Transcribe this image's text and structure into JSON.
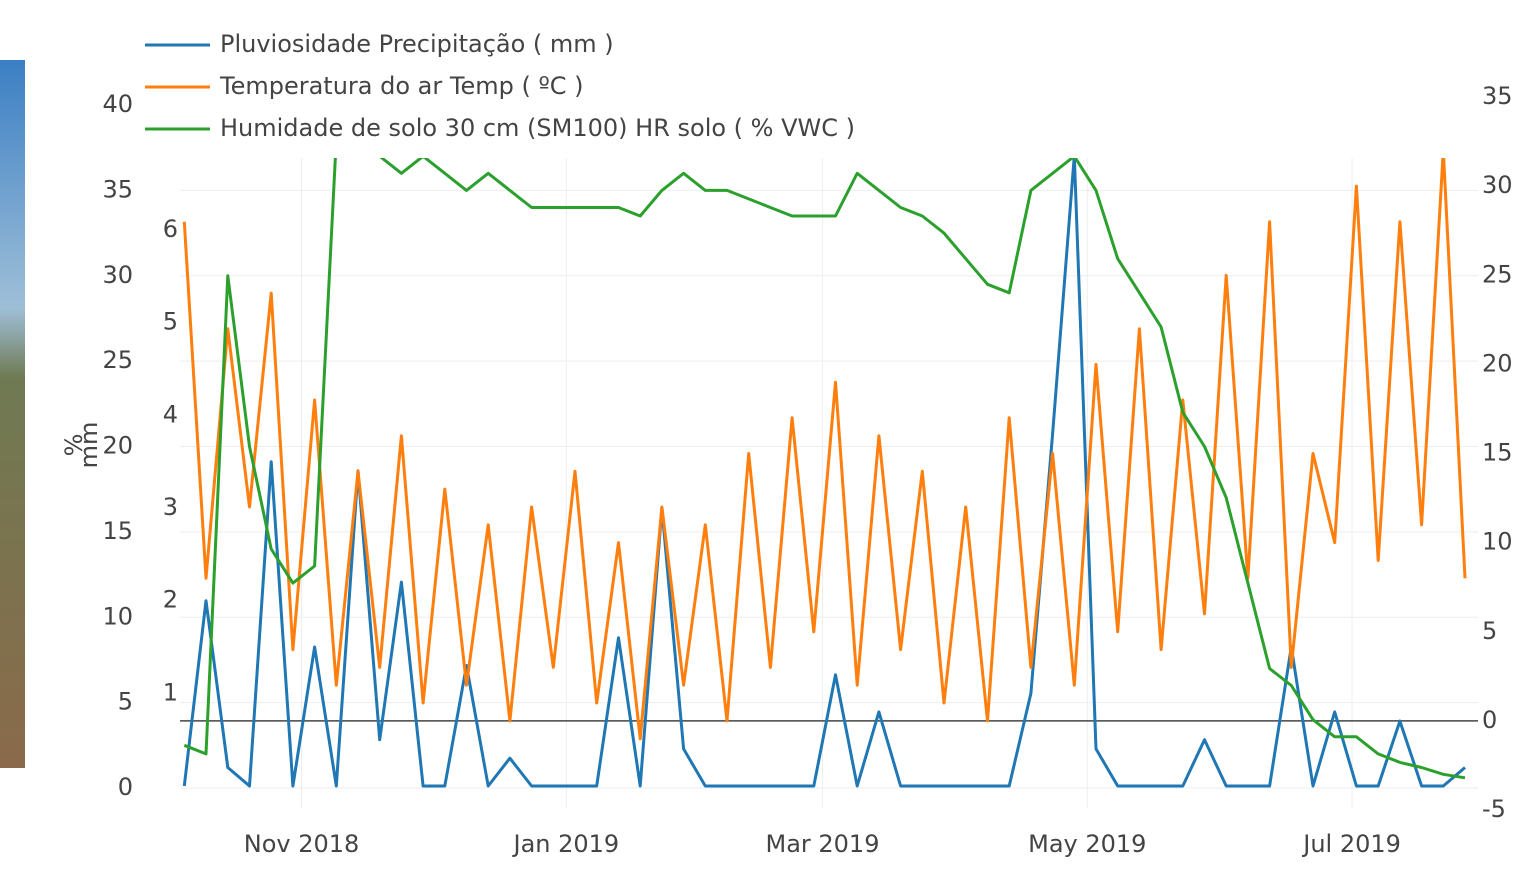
{
  "chart_data": {
    "type": "line",
    "ylabel": "mm",
    "y3label": "%",
    "x": [
      "2018-10-05",
      "2018-10-10",
      "2018-10-15",
      "2018-10-20",
      "2018-10-25",
      "2018-10-30",
      "2018-11-04",
      "2018-11-09",
      "2018-11-14",
      "2018-11-19",
      "2018-11-24",
      "2018-11-29",
      "2018-12-04",
      "2018-12-09",
      "2018-12-14",
      "2018-12-19",
      "2018-12-24",
      "2018-12-29",
      "2019-01-03",
      "2019-01-08",
      "2019-01-13",
      "2019-01-18",
      "2019-01-23",
      "2019-01-28",
      "2019-02-02",
      "2019-02-07",
      "2019-02-12",
      "2019-02-17",
      "2019-02-22",
      "2019-02-27",
      "2019-03-04",
      "2019-03-09",
      "2019-03-14",
      "2019-03-19",
      "2019-03-24",
      "2019-03-29",
      "2019-04-03",
      "2019-04-08",
      "2019-04-13",
      "2019-04-18",
      "2019-04-23",
      "2019-04-28",
      "2019-05-03",
      "2019-05-08",
      "2019-05-13",
      "2019-05-18",
      "2019-05-23",
      "2019-05-28",
      "2019-06-02",
      "2019-06-07",
      "2019-06-12",
      "2019-06-17",
      "2019-06-22",
      "2019-06-27",
      "2019-07-02",
      "2019-07-07",
      "2019-07-12",
      "2019-07-17",
      "2019-07-22",
      "2019-07-27"
    ],
    "xlim": [
      "2018-10-04",
      "2019-07-30"
    ],
    "xticks": [
      {
        "value": "2018-11-01",
        "label": "Nov 2018"
      },
      {
        "value": "2019-01-01",
        "label": "Jan 2019"
      },
      {
        "value": "2019-03-01",
        "label": "Mar 2019"
      },
      {
        "value": "2019-05-01",
        "label": "May 2019"
      },
      {
        "value": "2019-07-01",
        "label": "Jul 2019"
      }
    ],
    "ylim": [
      0,
      6
    ],
    "yticks": [
      1,
      2,
      3,
      4,
      5,
      6
    ],
    "y2lim": [
      -5,
      35
    ],
    "y2ticks": [
      -5,
      0,
      5,
      10,
      15,
      20,
      25,
      30,
      35
    ],
    "y3lim": [
      0,
      40
    ],
    "y3ticks": [
      0,
      5,
      10,
      15,
      20,
      25,
      30,
      35,
      40
    ],
    "grid": true,
    "series": [
      {
        "name": "Pluviosidade Precipitação ( mm )",
        "color": "#1f77b4",
        "axis": "y",
        "values": [
          0,
          2,
          0.2,
          0,
          3.5,
          0,
          1.5,
          0,
          3.4,
          0.5,
          2.2,
          0,
          0,
          1.3,
          0,
          0.3,
          0,
          0,
          0,
          0,
          1.6,
          0,
          3.0,
          0.4,
          0,
          0,
          0,
          0,
          0,
          0,
          1.2,
          0,
          0.8,
          0,
          0,
          0,
          0,
          0,
          0,
          1.0,
          3.8,
          6.8,
          0.4,
          0,
          0,
          0,
          0,
          0.5,
          0,
          0,
          0,
          1.5,
          0,
          0.8,
          0,
          0,
          0.7,
          0,
          0,
          0.2
        ]
      },
      {
        "name": "Temperatura do ar Temp ( ºC )",
        "color": "#ff7f0e",
        "axis": "y2",
        "values": [
          28,
          8,
          22,
          12,
          24,
          4,
          18,
          2,
          14,
          3,
          16,
          1,
          13,
          2,
          11,
          0,
          12,
          3,
          14,
          1,
          10,
          -1,
          12,
          2,
          11,
          0,
          15,
          3,
          17,
          5,
          19,
          2,
          16,
          4,
          14,
          1,
          12,
          0,
          17,
          3,
          15,
          2,
          20,
          5,
          22,
          4,
          18,
          6,
          25,
          8,
          28,
          3,
          15,
          10,
          30,
          9,
          28,
          11,
          32,
          8
        ]
      },
      {
        "name": "Humidade de solo 30 cm (SM100) HR solo ( % VWC )",
        "color": "#2ca02c",
        "axis": "y3",
        "values": [
          2.5,
          2,
          30,
          20,
          14,
          12,
          13,
          38,
          37,
          37,
          36,
          37,
          36,
          35,
          36,
          35,
          34,
          34,
          34,
          34,
          34,
          33.5,
          35,
          36,
          35,
          35,
          34.5,
          34,
          33.5,
          33.5,
          33.5,
          36,
          35,
          34,
          33.5,
          32.5,
          31,
          29.5,
          29,
          35,
          36,
          37,
          35,
          31,
          29,
          27,
          22,
          20,
          17,
          12,
          7,
          6,
          4,
          3,
          3,
          2,
          1.5,
          1.2,
          0.8,
          0.6
        ]
      }
    ]
  }
}
